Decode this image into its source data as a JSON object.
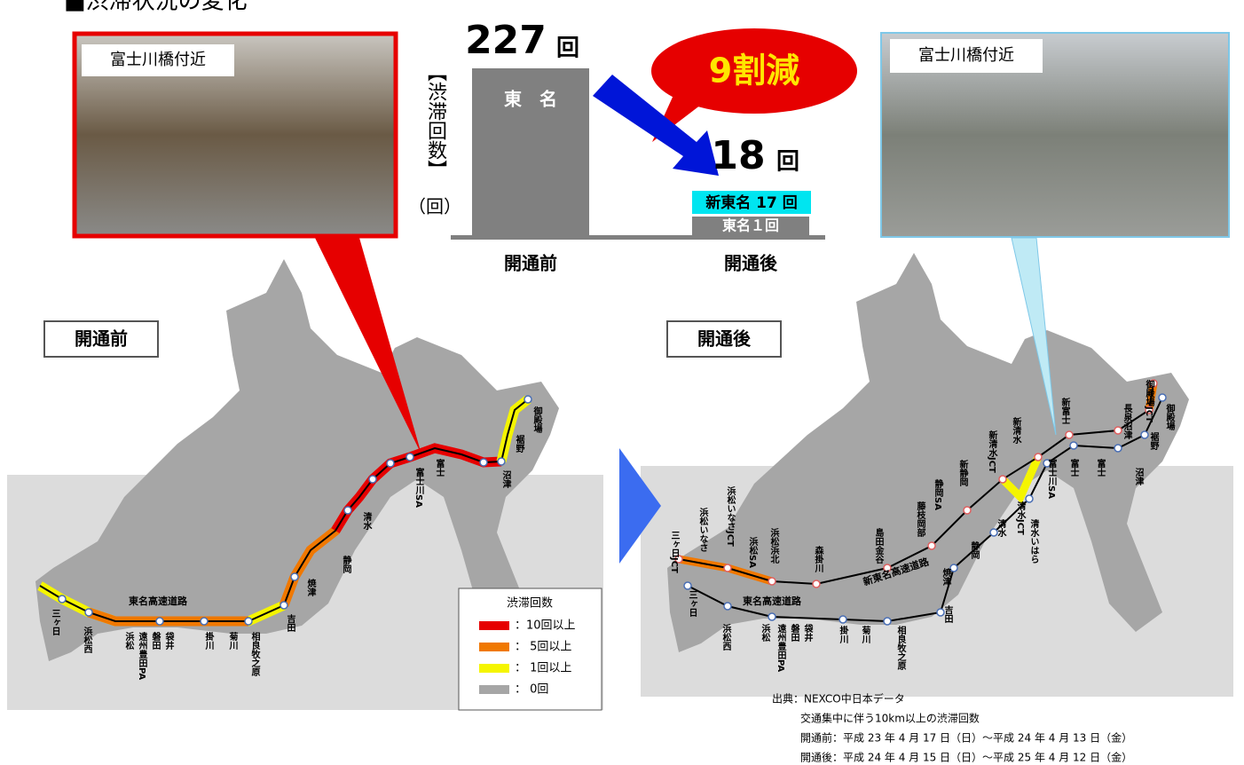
{
  "title": "■渋滞状況の変化",
  "photo_before": {
    "caption": "富士川橋付近"
  },
  "photo_after": {
    "caption": "富士川橋付近"
  },
  "bar_chart": {
    "type": "bar",
    "y_label": "【渋滞回数】",
    "unit": "（回）",
    "unit_mark": "回",
    "ylim": [
      0,
      227
    ],
    "categories": [
      "開通前",
      "開通後"
    ],
    "before": {
      "value": 227,
      "segment_label": "東　名",
      "color": "#808080"
    },
    "after": {
      "total": 18,
      "series": [
        {
          "name": "東名",
          "value": 1,
          "value_label": "東名１回",
          "color": "#808080"
        },
        {
          "name": "新東名",
          "value": 17,
          "value_label": "新東名 17 回",
          "color": "#00e5f0"
        }
      ]
    },
    "annotation": "9割減"
  },
  "before_map": {
    "tag": "開通前",
    "road": "東名高速道路",
    "stations": [
      "三ヶ日",
      "浜松西",
      "浜松",
      "遠州豊田PA",
      "磐田",
      "袋井",
      "掛川",
      "菊川",
      "相良牧之原",
      "吉田",
      "焼津",
      "静岡",
      "清水",
      "富士川SA",
      "富士",
      "沼津",
      "裾野",
      "御殿場"
    ]
  },
  "after_map": {
    "tag": "開通後",
    "road": "東名高速道路",
    "new_road": "新東名高速道路",
    "stations": [
      "三ヶ日JCT",
      "浜松いなさ",
      "浜松いなさJCT",
      "浜松SA",
      "浜松浜北",
      "森掛川",
      "島田金谷",
      "藤枝岡部",
      "静岡SA",
      "新静岡",
      "新清水JCT",
      "新清水",
      "新富士",
      "長泉沼津",
      "御殿場JCT",
      "御殿場",
      "裾野",
      "沼津",
      "富士",
      "富士",
      "富士川SA",
      "清水JCT",
      "清水いはら",
      "清水",
      "静岡",
      "焼津",
      "吉田",
      "相良牧之原",
      "菊川",
      "掛川",
      "袋井",
      "磐田",
      "遠州豊田PA",
      "浜松",
      "浜松西",
      "三ヶ日"
    ]
  },
  "legend": {
    "title": "渋滞回数",
    "items": [
      {
        "label": "：10回以上",
        "color": "#e60000"
      },
      {
        "label": "： 5回以上",
        "color": "#f07800"
      },
      {
        "label": "： 1回以上",
        "color": "#f5f500"
      },
      {
        "label": "： 0回",
        "color": "#a6a6a6"
      }
    ]
  },
  "source": [
    "出典：NEXCO中日本データ",
    "交通集中に伴う10km以上の渋滞回数",
    "開通前：平成 23 年 4 月 17 日（日）～平成 24 年 4 月 13 日（金）",
    "開通後：平成 24 年 4 月 15 日（日）～平成 25 年 4 月 12 日（金）"
  ]
}
